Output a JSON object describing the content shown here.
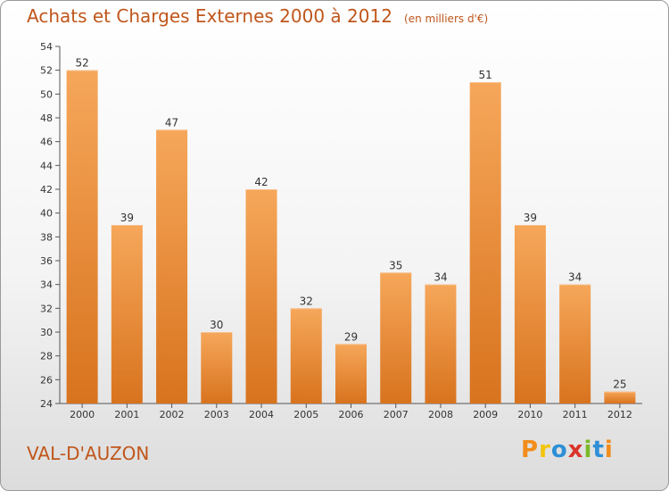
{
  "header": {
    "title": "Achats et Charges Externes 2000 à 2012",
    "subtitle": "(en milliers d'€)"
  },
  "footer": {
    "town": "VAL-D'AUZON",
    "logo_letters": [
      "P",
      "r",
      "o",
      "x",
      "i",
      "t",
      "i"
    ],
    "logo_colors": [
      "#f28c1a",
      "#f2c50d",
      "#2e8fd6",
      "#d9342b",
      "#7ab929",
      "#2e8fd6",
      "#f28c1a"
    ]
  },
  "colors": {
    "bar_top": "#f6a75a",
    "bar_bottom": "#d8731e",
    "bar_edge": "#f8c08c",
    "text": "#c0561b"
  },
  "chart_data": {
    "type": "bar",
    "categories": [
      "2000",
      "2001",
      "2002",
      "2003",
      "2004",
      "2005",
      "2006",
      "2007",
      "2008",
      "2009",
      "2010",
      "2011",
      "2012"
    ],
    "values": [
      52,
      39,
      47,
      30,
      42,
      32,
      29,
      35,
      34,
      51,
      39,
      34,
      25
    ],
    "title": "Achats et Charges Externes 2000 à 2012",
    "subtitle": "(en milliers d'€)",
    "xlabel": "",
    "ylabel": "",
    "ylim": [
      24,
      54
    ],
    "yticks": [
      24,
      26,
      28,
      30,
      32,
      34,
      36,
      38,
      40,
      42,
      44,
      46,
      48,
      50,
      52,
      54
    ],
    "grid": false,
    "data_labels": true,
    "legend": "none"
  }
}
